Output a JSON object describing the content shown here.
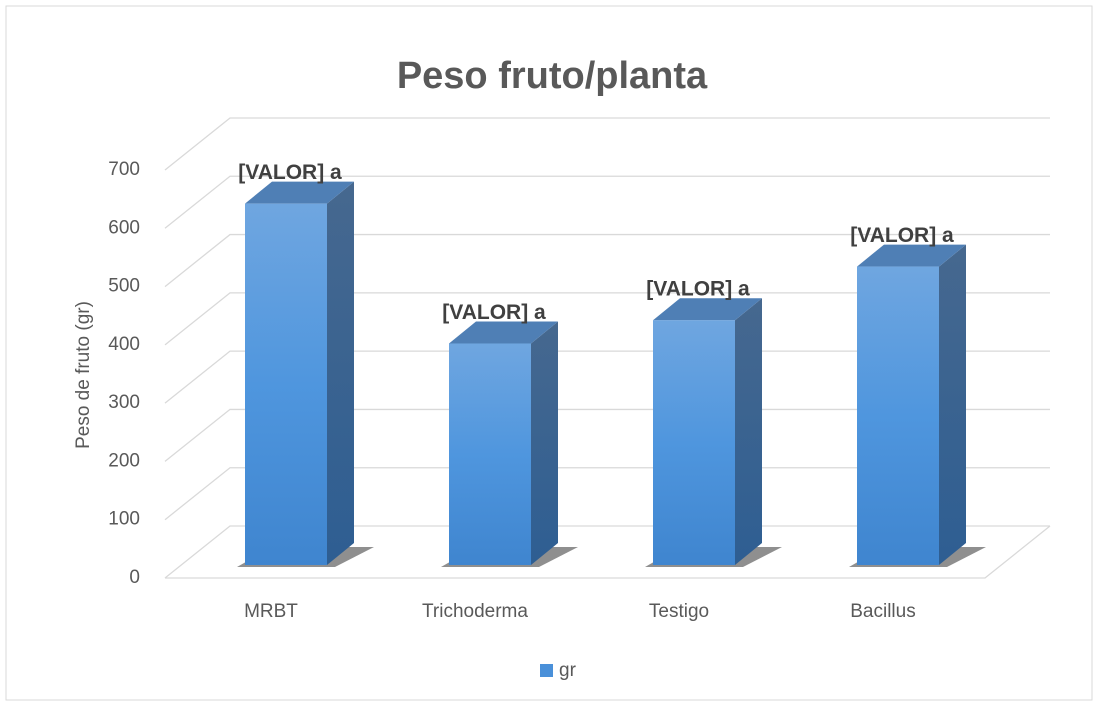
{
  "chart_data": {
    "type": "bar",
    "title": "Peso fruto/planta",
    "y_label": "Peso de fruto (gr)",
    "categories": [
      "MRBT",
      "Trichoderma",
      "Testigo",
      "Bacillus"
    ],
    "series": [
      {
        "name": "gr",
        "color": "#4a90d9",
        "values": [
          620,
          380,
          420,
          512
        ],
        "value_labels": [
          "[VALOR] a",
          "[VALOR] a",
          "[VALOR] a",
          "[VALOR] a"
        ]
      }
    ],
    "ylim": [
      0,
      700
    ],
    "yticks": [
      0,
      100,
      200,
      300,
      400,
      500,
      600,
      700
    ],
    "grid": true,
    "legend": "bottom"
  }
}
